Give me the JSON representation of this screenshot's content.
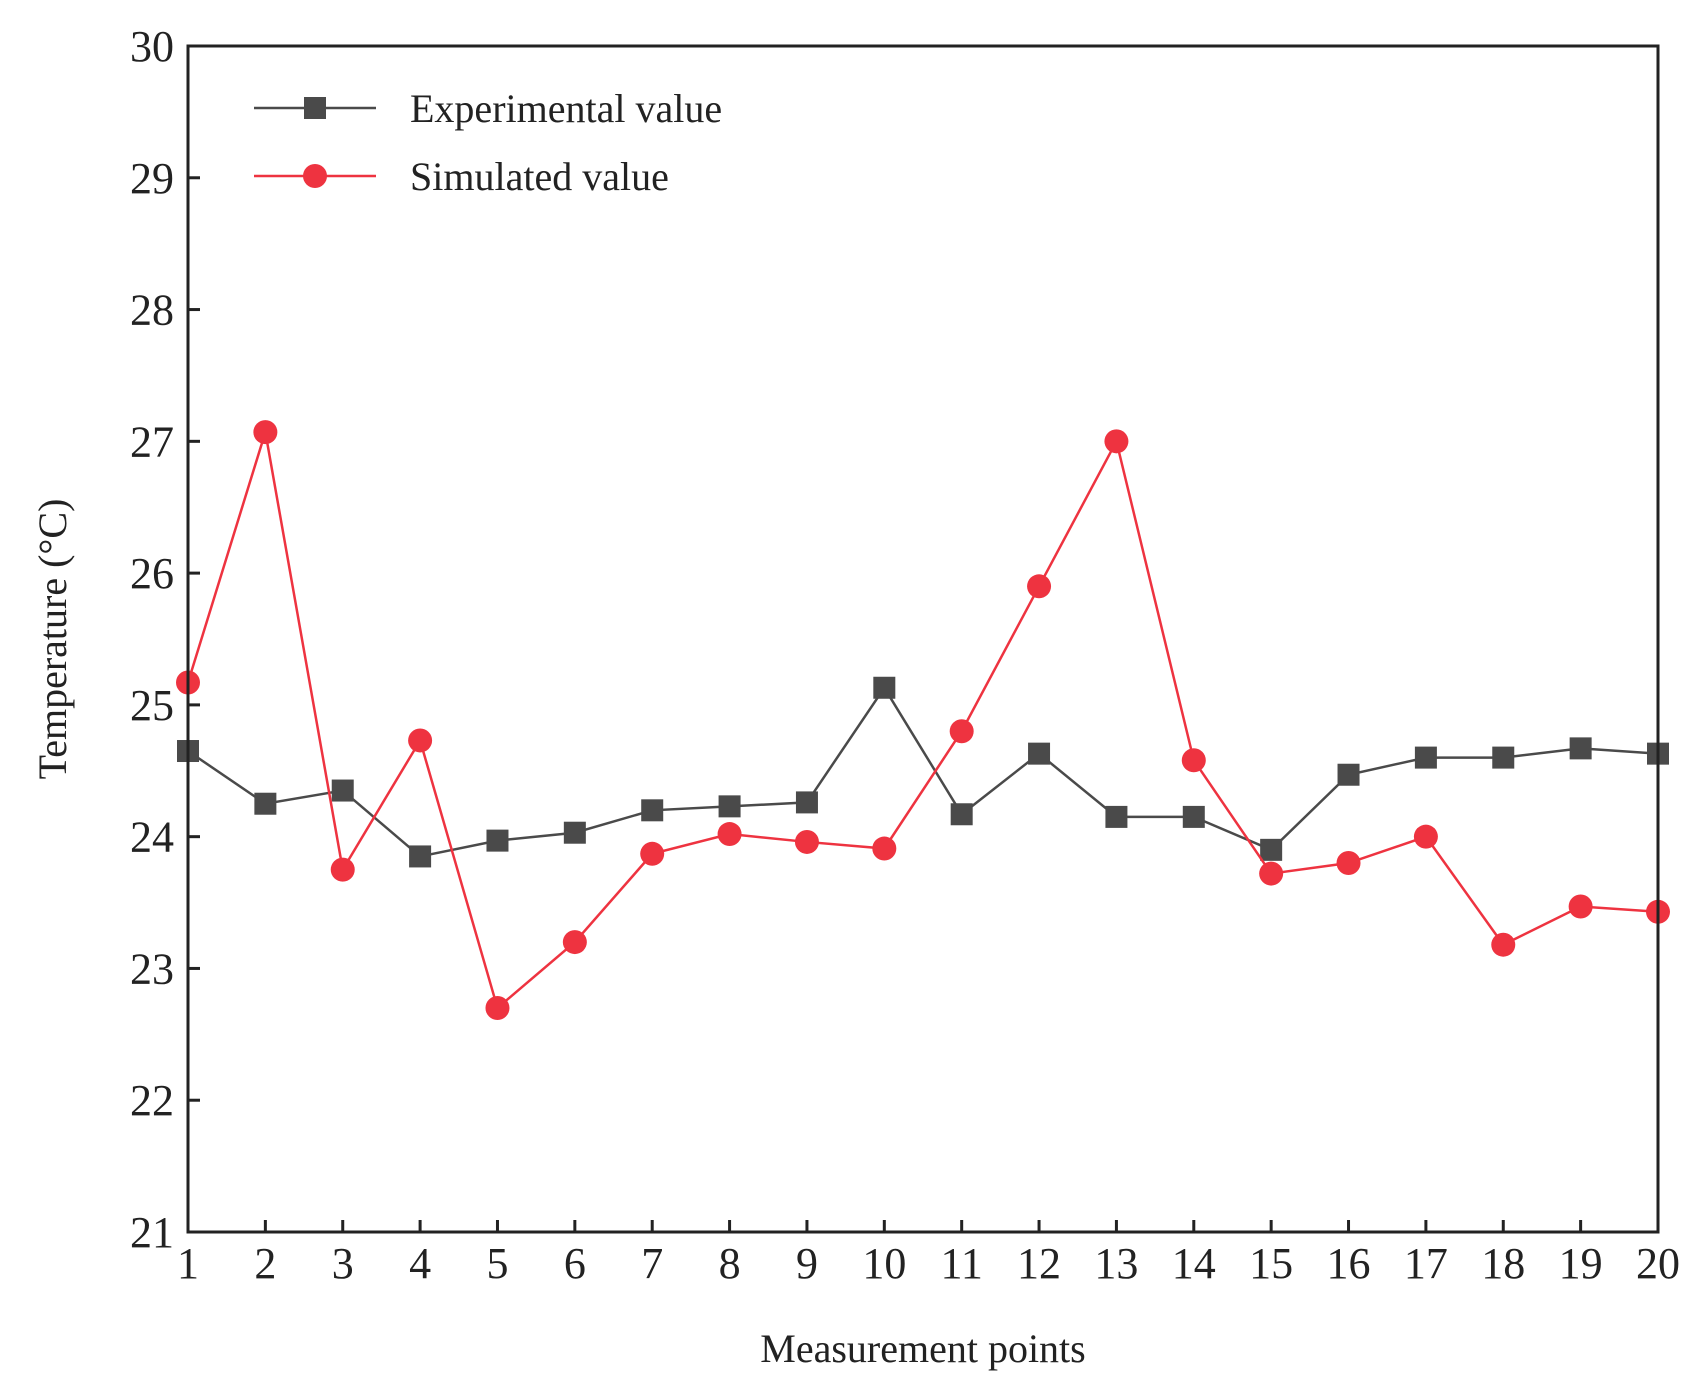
{
  "chart_data": {
    "type": "line",
    "title": "",
    "xlabel": "Measurement points",
    "ylabel": "Temperature (°C)",
    "x": [
      1,
      2,
      3,
      4,
      5,
      6,
      7,
      8,
      9,
      10,
      11,
      12,
      13,
      14,
      15,
      16,
      17,
      18,
      19,
      20
    ],
    "xlim": [
      1,
      20
    ],
    "ylim": [
      21,
      30
    ],
    "xticks": [
      "1",
      "2",
      "3",
      "4",
      "5",
      "6",
      "7",
      "8",
      "9",
      "10",
      "11",
      "12",
      "13",
      "14",
      "15",
      "16",
      "17",
      "18",
      "19",
      "20"
    ],
    "yticks": [
      "21",
      "22",
      "23",
      "24",
      "25",
      "26",
      "27",
      "28",
      "29",
      "30"
    ],
    "grid": false,
    "legend_position": "top-left",
    "series": [
      {
        "name": "Experimental value",
        "marker": "square",
        "color": "#4a4a4a",
        "values": [
          24.65,
          24.25,
          24.35,
          23.85,
          23.97,
          24.03,
          24.2,
          24.23,
          24.26,
          25.13,
          24.17,
          24.63,
          24.15,
          24.15,
          23.9,
          24.47,
          24.6,
          24.6,
          24.67,
          24.63
        ]
      },
      {
        "name": "Simulated value",
        "marker": "circle",
        "color": "#ee3340",
        "values": [
          25.17,
          27.07,
          23.75,
          24.73,
          22.7,
          23.2,
          23.87,
          24.02,
          23.96,
          23.91,
          24.8,
          25.9,
          27.0,
          24.58,
          23.72,
          23.8,
          24.0,
          23.18,
          23.47,
          23.43
        ]
      }
    ]
  }
}
